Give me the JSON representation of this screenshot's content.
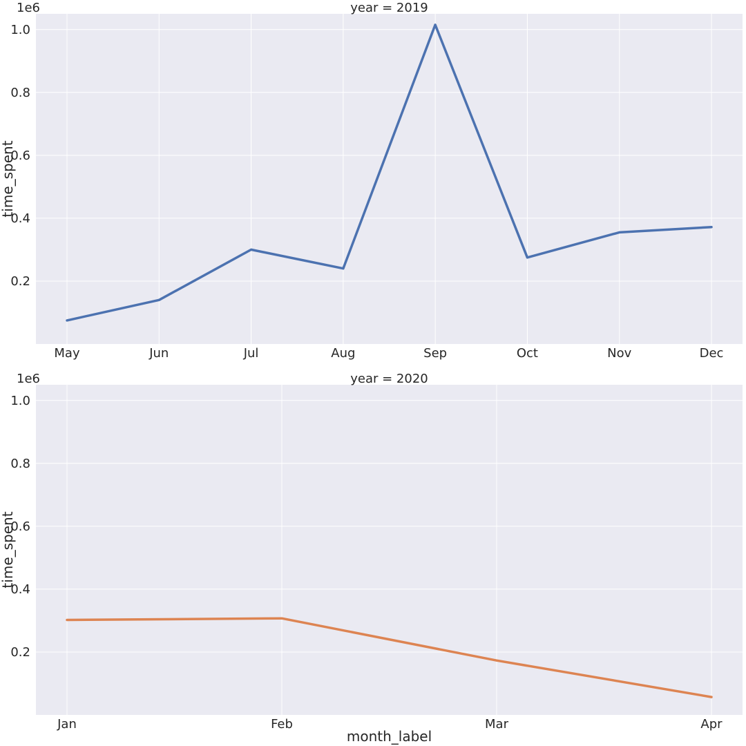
{
  "chart_data": [
    {
      "type": "line",
      "title": "year = 2019",
      "xlabel": "",
      "ylabel": "time_spent",
      "y_offset_label": "1e6",
      "ylim": [
        0.0,
        1.05
      ],
      "yticks": [
        0.2,
        0.4,
        0.6,
        0.8,
        1.0
      ],
      "ytick_labels": [
        "0.2",
        "0.4",
        "0.6",
        "0.8",
        "1.0"
      ],
      "categories": [
        "May",
        "Jun",
        "Jul",
        "Aug",
        "Sep",
        "Oct",
        "Nov",
        "Dec"
      ],
      "series": [
        {
          "values": [
            0.075,
            0.14,
            0.3,
            0.24,
            1.015,
            0.275,
            0.355,
            0.372
          ],
          "color": "#4c72b0"
        }
      ],
      "grid": true
    },
    {
      "type": "line",
      "title": "year = 2020",
      "xlabel": "month_label",
      "ylabel": "time_spent",
      "y_offset_label": "1e6",
      "ylim": [
        0.0,
        1.05
      ],
      "yticks": [
        0.2,
        0.4,
        0.6,
        0.8,
        1.0
      ],
      "ytick_labels": [
        "0.2",
        "0.4",
        "0.6",
        "0.8",
        "1.0"
      ],
      "categories": [
        "Jan",
        "Feb",
        "Mar",
        "Apr"
      ],
      "series": [
        {
          "values": [
            0.302,
            0.307,
            0.173,
            0.057
          ],
          "color": "#dd8452"
        }
      ],
      "grid": true
    }
  ]
}
